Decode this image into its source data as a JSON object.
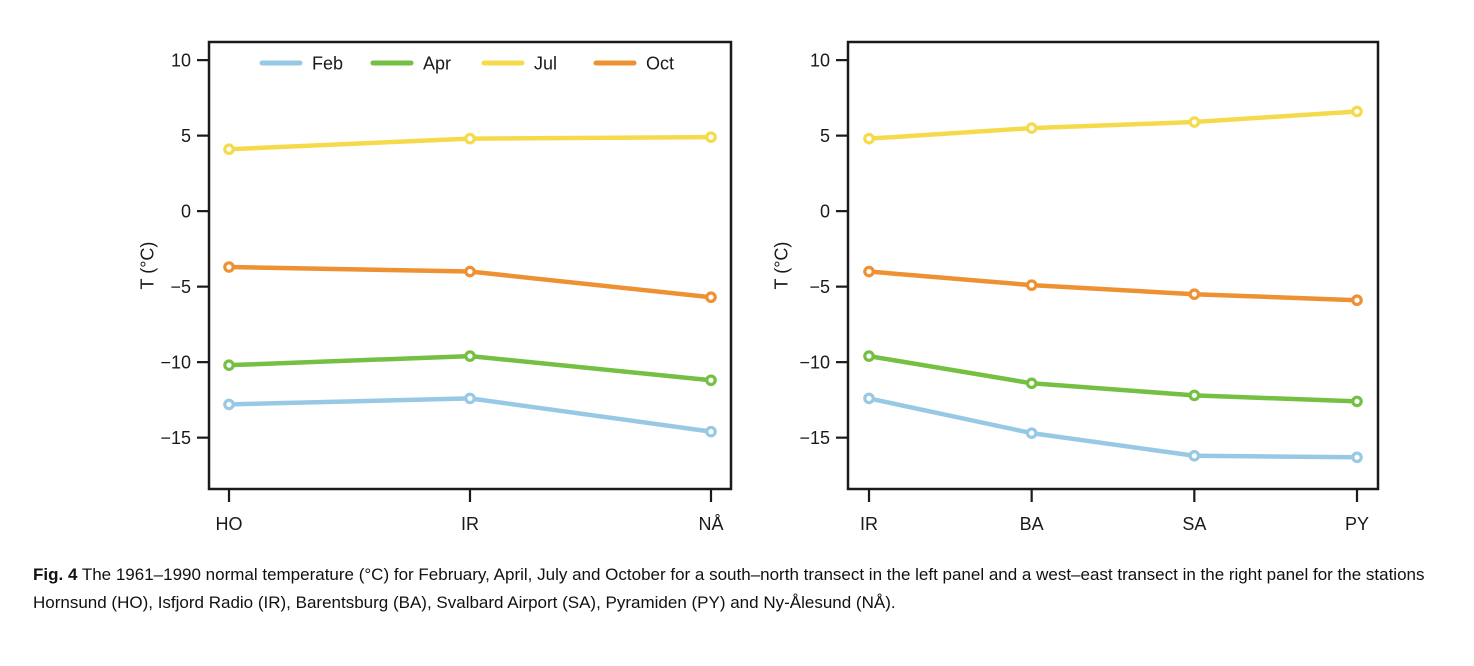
{
  "figure": {
    "caption_label": "Fig. 4",
    "caption_text": " The 1961–1990 normal temperature (°C) for February, April, July and October for a south–north transect in the left panel and a west–east transect in the right panel for the stations Hornsund (HO), Isfjord Radio (IR), Barentsburg (BA), Svalbard Airport (SA), Pyramiden (PY) and Ny-Ålesund (NÅ)."
  },
  "colors": {
    "feb": "#97C9E5",
    "apr": "#74C043",
    "jul": "#F5DB4C",
    "oct": "#EE9133",
    "axis": "#1A1A1A",
    "text": "#1A1A1A"
  },
  "chart_data": [
    {
      "type": "line",
      "title": "",
      "ylabel": "T (°C)",
      "categories": [
        "HO",
        "IR",
        "NÅ"
      ],
      "series": [
        {
          "name": "Feb",
          "color": "#97C9E5",
          "values": [
            -12.8,
            -12.4,
            -14.6
          ]
        },
        {
          "name": "Apr",
          "color": "#74C043",
          "values": [
            -10.2,
            -9.6,
            -11.2
          ]
        },
        {
          "name": "Jul",
          "color": "#F5DB4C",
          "values": [
            4.1,
            4.8,
            4.9
          ]
        },
        {
          "name": "Oct",
          "color": "#EE9133",
          "values": [
            -3.7,
            -4.0,
            -5.7
          ]
        }
      ],
      "yticks": [
        10,
        5,
        0,
        -5,
        -10,
        -15
      ],
      "ylim": [
        -18.4,
        11.2
      ],
      "grid": false,
      "legend": [
        "Feb",
        "Apr",
        "Jul",
        "Oct"
      ],
      "legend_position": "top-inside"
    },
    {
      "type": "line",
      "title": "",
      "ylabel": "T (°C)",
      "categories": [
        "IR",
        "BA",
        "SA",
        "PY"
      ],
      "series": [
        {
          "name": "Feb",
          "color": "#97C9E5",
          "values": [
            -12.4,
            -14.7,
            -16.2,
            -16.3
          ]
        },
        {
          "name": "Apr",
          "color": "#74C043",
          "values": [
            -9.6,
            -11.4,
            -12.2,
            -12.6
          ]
        },
        {
          "name": "Jul",
          "color": "#F5DB4C",
          "values": [
            4.8,
            5.5,
            5.9,
            6.6
          ]
        },
        {
          "name": "Oct",
          "color": "#EE9133",
          "values": [
            -4.0,
            -4.9,
            -5.5,
            -5.9
          ]
        }
      ],
      "yticks": [
        10,
        5,
        0,
        -5,
        -10,
        -15
      ],
      "ylim": [
        -18.4,
        11.2
      ],
      "grid": false,
      "legend": null,
      "legend_position": null
    }
  ]
}
